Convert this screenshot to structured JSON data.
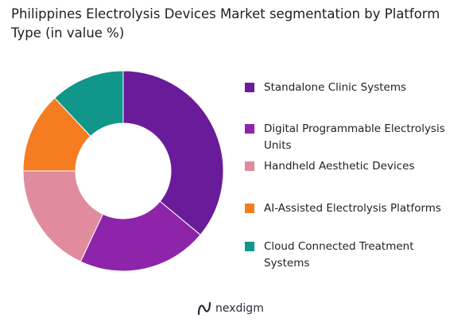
{
  "chart_data": {
    "type": "pie",
    "title": "Philippines Electrolysis Devices Market segmentation by Platform Type (in value %)",
    "hole": "donut",
    "legend_position": "right",
    "categories": [
      "Standalone Clinic Systems",
      "Digital Programmable Electrolysis Units",
      "Handheld Aesthetic Devices",
      "AI-Assisted Electrolysis Platforms",
      "Cloud Connected Treatment Systems"
    ],
    "values": [
      36,
      21,
      18,
      13,
      12
    ],
    "colors": [
      "#6a1b9a",
      "#8e24aa",
      "#e08c9e",
      "#f57c20",
      "#11968a"
    ]
  },
  "legend": {
    "items": [
      {
        "label": "Standalone Clinic Systems",
        "color": "#6a1b9a"
      },
      {
        "label": "Digital Programmable Electrolysis Units",
        "color": "#8e24aa"
      },
      {
        "label": "Handheld Aesthetic Devices",
        "color": "#e08c9e"
      },
      {
        "label": "AI-Assisted Electrolysis Platforms",
        "color": "#f57c20"
      },
      {
        "label": "Cloud Connected Treatment Systems",
        "color": "#11968a"
      }
    ]
  },
  "brand": {
    "name": "nexdigm",
    "logo_icon": "nexdigm-logo-icon",
    "color": "#2b2b3a"
  }
}
